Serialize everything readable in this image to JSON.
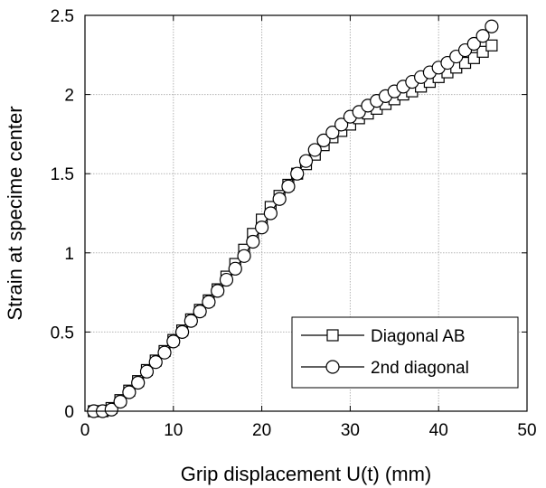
{
  "chart_data": {
    "type": "line",
    "xlabel": "Grip displacement U(t) (mm)",
    "ylabel": "Strain at specime center",
    "xlim": [
      0,
      50
    ],
    "ylim": [
      0,
      2.5
    ],
    "xticks": [
      0,
      10,
      20,
      30,
      40,
      50
    ],
    "xtick_labels": [
      "0",
      "10",
      "20",
      "30",
      "40",
      "50"
    ],
    "yticks": [
      0,
      0.5,
      1,
      1.5,
      2,
      2.5
    ],
    "ytick_labels": [
      "0",
      "0.5",
      "1",
      "1.5",
      "2",
      "2.5"
    ],
    "grid": true,
    "legend_position": "bottom-right",
    "series": [
      {
        "name": "Diagonal AB",
        "marker": "square",
        "color": "#000000",
        "x": [
          1,
          2,
          3,
          4,
          5,
          6,
          7,
          8,
          9,
          10,
          11,
          12,
          13,
          14,
          15,
          16,
          17,
          18,
          19,
          20,
          21,
          22,
          23,
          24,
          25,
          26,
          27,
          28,
          29,
          30,
          31,
          32,
          33,
          34,
          35,
          36,
          37,
          38,
          39,
          40,
          41,
          42,
          43,
          44,
          45,
          46
        ],
        "y": [
          0,
          0,
          0.02,
          0.07,
          0.13,
          0.19,
          0.26,
          0.32,
          0.38,
          0.45,
          0.51,
          0.58,
          0.64,
          0.7,
          0.77,
          0.85,
          0.93,
          1.02,
          1.12,
          1.21,
          1.29,
          1.36,
          1.43,
          1.5,
          1.56,
          1.62,
          1.68,
          1.73,
          1.77,
          1.81,
          1.85,
          1.88,
          1.91,
          1.94,
          1.97,
          2.0,
          2.02,
          2.05,
          2.08,
          2.11,
          2.14,
          2.17,
          2.2,
          2.23,
          2.27,
          2.31
        ]
      },
      {
        "name": "2nd diagonal",
        "marker": "circle",
        "color": "#000000",
        "x": [
          1,
          2,
          3,
          4,
          5,
          6,
          7,
          8,
          9,
          10,
          11,
          12,
          13,
          14,
          15,
          16,
          17,
          18,
          19,
          20,
          21,
          22,
          23,
          24,
          25,
          26,
          27,
          28,
          29,
          30,
          31,
          32,
          33,
          34,
          35,
          36,
          37,
          38,
          39,
          40,
          41,
          42,
          43,
          44,
          45,
          46
        ],
        "y": [
          0,
          0,
          0.01,
          0.06,
          0.12,
          0.18,
          0.25,
          0.31,
          0.37,
          0.44,
          0.5,
          0.57,
          0.63,
          0.69,
          0.76,
          0.83,
          0.9,
          0.98,
          1.07,
          1.16,
          1.25,
          1.34,
          1.42,
          1.5,
          1.58,
          1.65,
          1.71,
          1.76,
          1.81,
          1.86,
          1.89,
          1.93,
          1.96,
          1.99,
          2.02,
          2.05,
          2.08,
          2.11,
          2.14,
          2.17,
          2.2,
          2.24,
          2.28,
          2.32,
          2.37,
          2.43
        ]
      }
    ]
  }
}
